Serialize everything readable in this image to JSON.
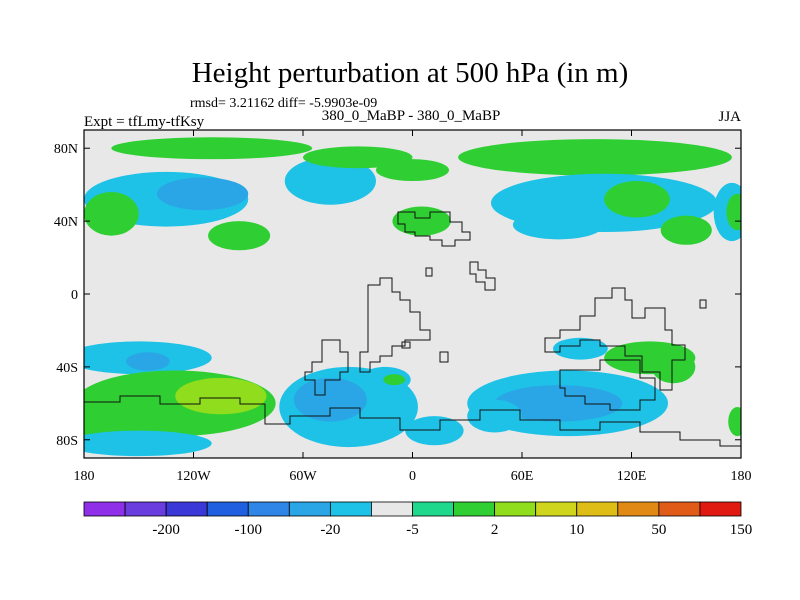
{
  "chart_data": {
    "type": "heatmap",
    "title": "Height perturbation at 500 hPa (in m)",
    "stats": "rmsd= 3.21162 diff= -5.9903e-09",
    "left_label": "Expt = tfLmy-tfKsy",
    "center_label": "380_0_MaBP - 380_0_MaBP",
    "right_label": "JJA",
    "xlim": [
      -180,
      180
    ],
    "ylim": [
      -90,
      90
    ],
    "x_ticks": [
      {
        "value": -180,
        "label": "180"
      },
      {
        "value": -120,
        "label": "120W"
      },
      {
        "value": -60,
        "label": "60W"
      },
      {
        "value": 0,
        "label": "0"
      },
      {
        "value": 60,
        "label": "60E"
      },
      {
        "value": 120,
        "label": "120E"
      },
      {
        "value": 180,
        "label": "180"
      }
    ],
    "y_ticks": [
      {
        "value": 80,
        "label": "80N"
      },
      {
        "value": 40,
        "label": "40N"
      },
      {
        "value": 0,
        "label": "0"
      },
      {
        "value": -40,
        "label": "40S"
      },
      {
        "value": -80,
        "label": "80S"
      }
    ],
    "colorbar": {
      "colors": [
        "#8f2fe8",
        "#6a3ddf",
        "#3b38d8",
        "#1f5fe0",
        "#2f86e6",
        "#2aa6e6",
        "#1ec2e6",
        "#e8e8e8",
        "#20d88c",
        "#2fcf33",
        "#8fdd1c",
        "#cfd41c",
        "#ddbd16",
        "#e08a15",
        "#e05a18",
        "#e01a10"
      ],
      "labels": [
        {
          "after": 1,
          "text": "-200"
        },
        {
          "after": 3,
          "text": "-100"
        },
        {
          "after": 5,
          "text": "-20"
        },
        {
          "after": 7,
          "text": "-5"
        },
        {
          "after": 9,
          "text": "2"
        },
        {
          "after": 11,
          "text": "10"
        },
        {
          "after": 13,
          "text": "50"
        },
        {
          "after": 15,
          "text": "150"
        }
      ]
    },
    "regions": [
      {
        "name": "n-top-band",
        "level": 9,
        "lon": -110,
        "lat": 80,
        "rlon": 55,
        "rlat": 6
      },
      {
        "name": "n-blue-west",
        "level": 6,
        "lon": -135,
        "lat": 52,
        "rlon": 45,
        "rlat": 15
      },
      {
        "name": "n-blue-west-inner",
        "level": 5,
        "lon": -115,
        "lat": 55,
        "rlon": 25,
        "rlat": 9
      },
      {
        "name": "n-green-far-west",
        "level": 9,
        "lon": -165,
        "lat": 44,
        "rlon": 15,
        "rlat": 12
      },
      {
        "name": "n-blue-dateline",
        "level": 6,
        "lon": -45,
        "lat": 62,
        "rlon": 25,
        "rlat": 13
      },
      {
        "name": "n-green-north-a",
        "level": 9,
        "lon": -30,
        "lat": 75,
        "rlon": 30,
        "rlat": 6
      },
      {
        "name": "n-green-north-b",
        "level": 9,
        "lon": 0,
        "lat": 68,
        "rlon": 20,
        "rlat": 6
      },
      {
        "name": "n-green-mid",
        "level": 9,
        "lon": -95,
        "lat": 32,
        "rlon": 17,
        "rlat": 8
      },
      {
        "name": "n-green-europe",
        "level": 9,
        "lon": 5,
        "lat": 40,
        "rlon": 16,
        "rlat": 8
      },
      {
        "name": "n-green-east-band",
        "level": 9,
        "lon": 100,
        "lat": 75,
        "rlon": 75,
        "rlat": 10
      },
      {
        "name": "n-blue-east",
        "level": 6,
        "lon": 105,
        "lat": 50,
        "rlon": 62,
        "rlat": 16
      },
      {
        "name": "n-green-east",
        "level": 9,
        "lon": 123,
        "lat": 52,
        "rlon": 18,
        "rlat": 10
      },
      {
        "name": "n-blue-asia",
        "level": 6,
        "lon": 80,
        "lat": 38,
        "rlon": 25,
        "rlat": 8
      },
      {
        "name": "n-green-pacific-e",
        "level": 9,
        "lon": 150,
        "lat": 35,
        "rlon": 14,
        "rlat": 8
      },
      {
        "name": "n-blue-far-east",
        "level": 6,
        "lon": 175,
        "lat": 45,
        "rlon": 10,
        "rlat": 16
      },
      {
        "name": "n-green-far-east",
        "level": 9,
        "lon": 178,
        "lat": 45,
        "rlon": 6,
        "rlat": 10
      },
      {
        "name": "s-blue-band-w",
        "level": 6,
        "lon": -150,
        "lat": -35,
        "rlon": 40,
        "rlat": 9
      },
      {
        "name": "s-blue-band-w2",
        "level": 5,
        "lon": -145,
        "lat": -37,
        "rlon": 12,
        "rlat": 5
      },
      {
        "name": "s-green-west",
        "level": 9,
        "lon": -130,
        "lat": -60,
        "rlon": 55,
        "rlat": 18
      },
      {
        "name": "s-green-west2",
        "level": 9,
        "lon": -170,
        "lat": -65,
        "rlon": 25,
        "rlat": 14
      },
      {
        "name": "s-yellow-west",
        "level": 10,
        "lon": -105,
        "lat": -56,
        "rlon": 25,
        "rlat": 10
      },
      {
        "name": "s-blue-south-w",
        "level": 6,
        "lon": -150,
        "lat": -82,
        "rlon": 40,
        "rlat": 7
      },
      {
        "name": "s-blue-south-center",
        "level": 6,
        "lon": -35,
        "lat": -62,
        "rlon": 38,
        "rlat": 22
      },
      {
        "name": "s-blue-south-center-inner",
        "level": 5,
        "lon": -45,
        "lat": -58,
        "rlon": 20,
        "rlat": 12
      },
      {
        "name": "s-blue-small-atl",
        "level": 6,
        "lon": -15,
        "lat": -47,
        "rlon": 14,
        "rlat": 7
      },
      {
        "name": "s-green-small-atl",
        "level": 9,
        "lon": -10,
        "lat": -47,
        "rlon": 6,
        "rlat": 3
      },
      {
        "name": "s-blue-south-center-b",
        "level": 6,
        "lon": 12,
        "lat": -75,
        "rlon": 16,
        "rlat": 8
      },
      {
        "name": "s-blue-south-e",
        "level": 6,
        "lon": 85,
        "lat": -60,
        "rlon": 55,
        "rlat": 18
      },
      {
        "name": "s-blue-south-e-inner",
        "level": 5,
        "lon": 80,
        "lat": -60,
        "rlon": 35,
        "rlat": 10
      },
      {
        "name": "s-blue-south-e2",
        "level": 6,
        "lon": 45,
        "lat": -67,
        "rlon": 15,
        "rlat": 9
      },
      {
        "name": "s-green-east",
        "level": 9,
        "lon": 130,
        "lat": -35,
        "rlon": 25,
        "rlat": 9
      },
      {
        "name": "s-green-east2",
        "level": 9,
        "lon": 143,
        "lat": -40,
        "rlon": 12,
        "rlat": 9
      },
      {
        "name": "s-blue-east",
        "level": 6,
        "lon": 92,
        "lat": -30,
        "rlon": 15,
        "rlat": 6
      },
      {
        "name": "s-green-far-east",
        "level": 9,
        "lon": 178,
        "lat": -70,
        "rlon": 5,
        "rlat": 8
      }
    ]
  }
}
